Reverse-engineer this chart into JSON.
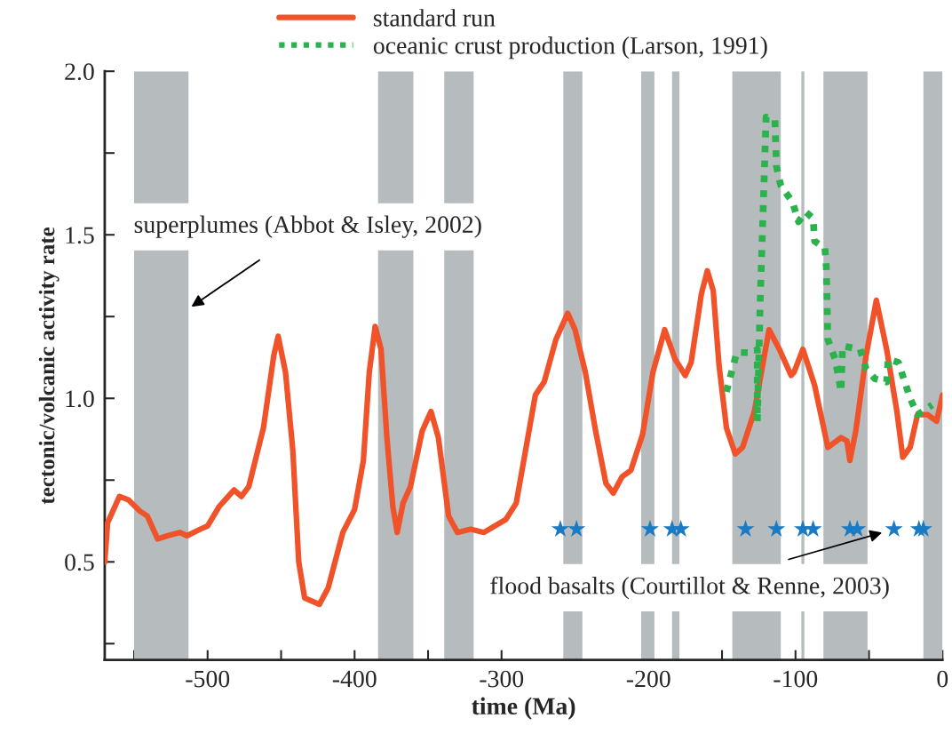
{
  "chart_data": {
    "type": "line",
    "xlabel": "time (Ma)",
    "ylabel": "tectonic/volcanic activity rate",
    "xlim": [
      -570,
      0
    ],
    "ylim": [
      0.2,
      2.0
    ],
    "xticks": [
      {
        "value": -550,
        "label": null
      },
      {
        "value": -500,
        "label": "-500"
      },
      {
        "value": -450,
        "label": null
      },
      {
        "value": -400,
        "label": "-400"
      },
      {
        "value": -350,
        "label": null
      },
      {
        "value": -300,
        "label": "-300"
      },
      {
        "value": -250,
        "label": null
      },
      {
        "value": -200,
        "label": "-200"
      },
      {
        "value": -150,
        "label": null
      },
      {
        "value": -100,
        "label": "-100"
      },
      {
        "value": -50,
        "label": null
      },
      {
        "value": 0,
        "label": "0"
      }
    ],
    "yticks": [
      {
        "value": 0.25,
        "label": null
      },
      {
        "value": 0.5,
        "label": "0.5"
      },
      {
        "value": 0.75,
        "label": null
      },
      {
        "value": 1,
        "label": "1.0"
      },
      {
        "value": 1.25,
        "label": null
      },
      {
        "value": 1.5,
        "label": "1.5"
      },
      {
        "value": 1.75,
        "label": null
      },
      {
        "value": 2,
        "label": "2.0"
      }
    ],
    "grid": false,
    "legend": "top",
    "series": [
      {
        "name": "standard run",
        "color": "#f0522a",
        "line_style": "solid",
        "marker": "none",
        "x": [
          -570,
          -568,
          -560,
          -554,
          -546,
          -541,
          -534,
          -527,
          -519,
          -514,
          -505,
          -500,
          -492,
          -482,
          -477,
          -472,
          -462,
          -455,
          -452,
          -447,
          -442,
          -438,
          -434,
          -424,
          -418,
          -408,
          -400,
          -394,
          -390,
          -386,
          -382,
          -378,
          -374,
          -371,
          -367,
          -362,
          -354,
          -348,
          -343,
          -336,
          -330,
          -321,
          -312,
          -297,
          -290,
          -277,
          -271,
          -263,
          -255,
          -250,
          -243,
          -236,
          -229,
          -224,
          -218,
          -212,
          -204,
          -197,
          -189,
          -182,
          -175,
          -171,
          -164,
          -160,
          -156,
          -152,
          -147,
          -141,
          -136,
          -128,
          -118,
          -111,
          -103,
          -101,
          -95,
          -87,
          -78,
          -69,
          -65,
          -63,
          -59,
          -52,
          -45,
          -38,
          -31,
          -27,
          -22,
          -17,
          -10,
          -4,
          0
        ],
        "values": [
          0.5,
          0.62,
          0.7,
          0.69,
          0.655,
          0.64,
          0.57,
          0.58,
          0.59,
          0.58,
          0.6,
          0.61,
          0.67,
          0.72,
          0.7,
          0.73,
          0.91,
          1.13,
          1.19,
          1.08,
          0.84,
          0.5,
          0.39,
          0.37,
          0.42,
          0.59,
          0.66,
          0.81,
          1.08,
          1.22,
          1.15,
          0.88,
          0.67,
          0.59,
          0.68,
          0.73,
          0.9,
          0.96,
          0.88,
          0.64,
          0.59,
          0.6,
          0.59,
          0.63,
          0.68,
          1.01,
          1.05,
          1.18,
          1.26,
          1.21,
          1.08,
          0.9,
          0.74,
          0.71,
          0.76,
          0.78,
          0.89,
          1.08,
          1.21,
          1.12,
          1.07,
          1.11,
          1.32,
          1.39,
          1.33,
          1.1,
          0.91,
          0.83,
          0.85,
          0.96,
          1.21,
          1.15,
          1.07,
          1.08,
          1.15,
          1.04,
          0.85,
          0.88,
          0.87,
          0.81,
          0.9,
          1.13,
          1.3,
          1.15,
          0.96,
          0.82,
          0.85,
          0.95,
          0.95,
          0.93,
          1.01
        ]
      },
      {
        "name": "oceanic crust production (Larson, 1991)",
        "color": "#2bb24c",
        "line_style": "dotted",
        "marker": "none",
        "x": [
          -147,
          -140,
          -129,
          -126,
          -126,
          -124,
          -120,
          -114,
          -113,
          -110,
          -102,
          -98,
          -93,
          -88,
          -87,
          -80,
          -79,
          -78,
          -73,
          -69,
          -68,
          -56,
          -52,
          -46,
          -38,
          -37,
          -30,
          -22,
          -17,
          -7
        ],
        "values": [
          1.02,
          1.14,
          1.14,
          1.15,
          0.93,
          1.3,
          1.86,
          1.85,
          1.71,
          1.65,
          1.6,
          1.54,
          1.57,
          1.55,
          1.48,
          1.46,
          1.4,
          1.18,
          1.12,
          1.02,
          1.16,
          1.15,
          1.09,
          1.06,
          1.05,
          1.12,
          1.11,
          1.0,
          0.95,
          0.98
        ]
      },
      {
        "type": "scatter",
        "color": "#1a7bc4",
        "marker": "star",
        "x": [
          -260,
          -249,
          -199,
          -184,
          -178,
          -134,
          -113,
          -95,
          -88,
          -63,
          -58,
          -33,
          -16,
          -13
        ],
        "values": [
          0.6,
          0.6,
          0.6,
          0.6,
          0.6,
          0.6,
          0.6,
          0.6,
          0.6,
          0.6,
          0.6,
          0.6,
          0.6,
          0.6
        ]
      }
    ],
    "bands": [
      {
        "axis": "x",
        "from": -550,
        "to": -513,
        "color": "#b6bbbd"
      },
      {
        "axis": "x",
        "from": -384,
        "to": -360,
        "color": "#b6bbbd"
      },
      {
        "axis": "x",
        "from": -339,
        "to": -319,
        "color": "#b6bbbd"
      },
      {
        "axis": "x",
        "from": -258,
        "to": -245,
        "color": "#b6bbbd"
      },
      {
        "axis": "x",
        "from": -205,
        "to": -196,
        "color": "#b6bbbd"
      },
      {
        "axis": "x",
        "from": -184,
        "to": -179,
        "color": "#b6bbbd"
      },
      {
        "axis": "x",
        "from": -143,
        "to": -110,
        "color": "#b6bbbd"
      },
      {
        "axis": "x",
        "from": -96,
        "to": -94,
        "color": "#b6bbbd"
      },
      {
        "axis": "x",
        "from": -81,
        "to": -51,
        "color": "#b6bbbd"
      },
      {
        "axis": "x",
        "from": -13,
        "to": 0,
        "color": "#b6bbbd"
      }
    ],
    "annotations": [
      {
        "text": "superplumes (Abbot & Isley, 2002)",
        "x": -511,
        "y": 1.28
      },
      {
        "text": "flood basalts (Courtillot & Renne, 2003)",
        "x": -33,
        "y": 0.6
      }
    ]
  }
}
